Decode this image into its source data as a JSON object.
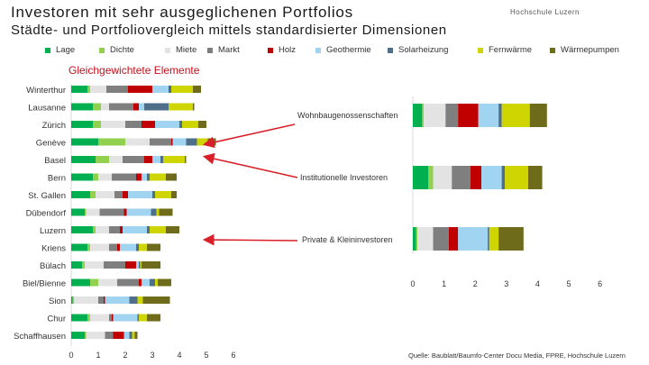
{
  "header": {
    "title": "Investoren mit sehr ausgeglichenen Portfolios",
    "subtitle": "Städte- und Portfoliovergleich mittels standardisierter Dimensionen",
    "logo_text": "Hochschule Luzern",
    "source": "Quelle: Baublatt/Baumfo-Center Docu Media, FPRE, Hochschule Luzern"
  },
  "chart_data": [
    {
      "type": "bar",
      "orientation": "horizontal",
      "stacked": true,
      "title": "Gleichgewichtete Elemente",
      "categories": [
        "Winterthur",
        "Lausanne",
        "Zürich",
        "Genève",
        "Basel",
        "Bern",
        "St. Gallen",
        "Dübendorf",
        "Luzern",
        "Kriens",
        "Bülach",
        "Biel/Bienne",
        "Sion",
        "Chur",
        "Schaffhausen"
      ],
      "series": [
        {
          "name": "Lage",
          "color": "#00b050",
          "values": [
            0.6,
            0.8,
            0.8,
            1.0,
            0.9,
            0.8,
            0.7,
            0.5,
            0.8,
            0.6,
            0.4,
            0.7,
            0.05,
            0.6,
            0.5
          ]
        },
        {
          "name": "Dichte",
          "color": "#92d050",
          "values": [
            0.1,
            0.3,
            0.3,
            1.0,
            0.5,
            0.2,
            0.2,
            0.05,
            0.1,
            0.1,
            0.1,
            0.3,
            0.05,
            0.1,
            0.05
          ]
        },
        {
          "name": "Miete",
          "color": "#e3e3e3",
          "values": [
            0.6,
            0.3,
            0.9,
            0.9,
            0.5,
            0.5,
            0.7,
            0.5,
            0.5,
            0.7,
            0.7,
            0.7,
            0.9,
            0.7,
            0.7
          ]
        },
        {
          "name": "Markt",
          "color": "#7f7f7f",
          "values": [
            0.8,
            0.9,
            0.6,
            0.8,
            0.8,
            0.9,
            0.3,
            0.9,
            0.4,
            0.3,
            0.8,
            0.8,
            0.2,
            0.1,
            0.3
          ]
        },
        {
          "name": "Holz",
          "color": "#c00000",
          "values": [
            0.9,
            0.2,
            0.5,
            0.05,
            0.3,
            0.2,
            0.2,
            0.1,
            0.1,
            0.1,
            0.4,
            0.1,
            0.05,
            0.05,
            0.4
          ]
        },
        {
          "name": "Geothermie",
          "color": "#a0d4f0",
          "values": [
            0.6,
            0.2,
            0.9,
            0.5,
            0.3,
            0.2,
            0.9,
            0.9,
            0.9,
            0.6,
            0.1,
            0.3,
            0.9,
            0.9,
            0.2
          ]
        },
        {
          "name": "Solarheizung",
          "color": "#4e6e8a",
          "values": [
            0.1,
            0.9,
            0.1,
            0.4,
            0.1,
            0.1,
            0.1,
            0.2,
            0.1,
            0.1,
            0.05,
            0.2,
            0.3,
            0.05,
            0.1
          ]
        },
        {
          "name": "Fernwärme",
          "color": "#cfd500",
          "values": [
            0.8,
            0.9,
            0.6,
            0.4,
            0.8,
            0.6,
            0.6,
            0.1,
            0.6,
            0.3,
            0.05,
            0.1,
            0.2,
            0.3,
            0.1
          ]
        },
        {
          "name": "Wärmepumpen",
          "color": "#6e6b1a",
          "values": [
            0.3,
            0.05,
            0.3,
            0.3,
            0.05,
            0.4,
            0.2,
            0.5,
            0.5,
            0.5,
            0.7,
            0.5,
            1.0,
            0.5,
            0.1
          ]
        }
      ],
      "x_ticks": [
        0,
        1,
        2,
        3,
        4,
        5,
        6
      ],
      "xlim": [
        0,
        6
      ]
    },
    {
      "type": "bar",
      "orientation": "horizontal",
      "stacked": true,
      "categories": [
        "Wohnbaugenossenschaften",
        "Institutionelle Investoren",
        "Private & Kleininvestoren"
      ],
      "series": [
        {
          "name": "Lage",
          "color": "#00b050",
          "values": [
            0.3,
            0.5,
            0.1
          ]
        },
        {
          "name": "Dichte",
          "color": "#92d050",
          "values": [
            0.05,
            0.15,
            0.05
          ]
        },
        {
          "name": "Miete",
          "color": "#e3e3e3",
          "values": [
            0.7,
            0.6,
            0.5
          ]
        },
        {
          "name": "Markt",
          "color": "#7f7f7f",
          "values": [
            0.4,
            0.6,
            0.5
          ]
        },
        {
          "name": "Holz",
          "color": "#c00000",
          "values": [
            0.65,
            0.35,
            0.3
          ]
        },
        {
          "name": "Geothermie",
          "color": "#a0d4f0",
          "values": [
            0.65,
            0.65,
            0.95
          ]
        },
        {
          "name": "Solarheizung",
          "color": "#4e6e8a",
          "values": [
            0.1,
            0.1,
            0.05
          ]
        },
        {
          "name": "Fernwärme",
          "color": "#cfd500",
          "values": [
            0.9,
            0.75,
            0.3
          ]
        },
        {
          "name": "Wärmepumpen",
          "color": "#6e6b1a",
          "values": [
            0.55,
            0.45,
            0.8
          ]
        }
      ],
      "x_ticks": [
        0,
        1,
        2,
        3,
        4,
        5,
        6
      ],
      "xlim": [
        0,
        6
      ]
    }
  ]
}
